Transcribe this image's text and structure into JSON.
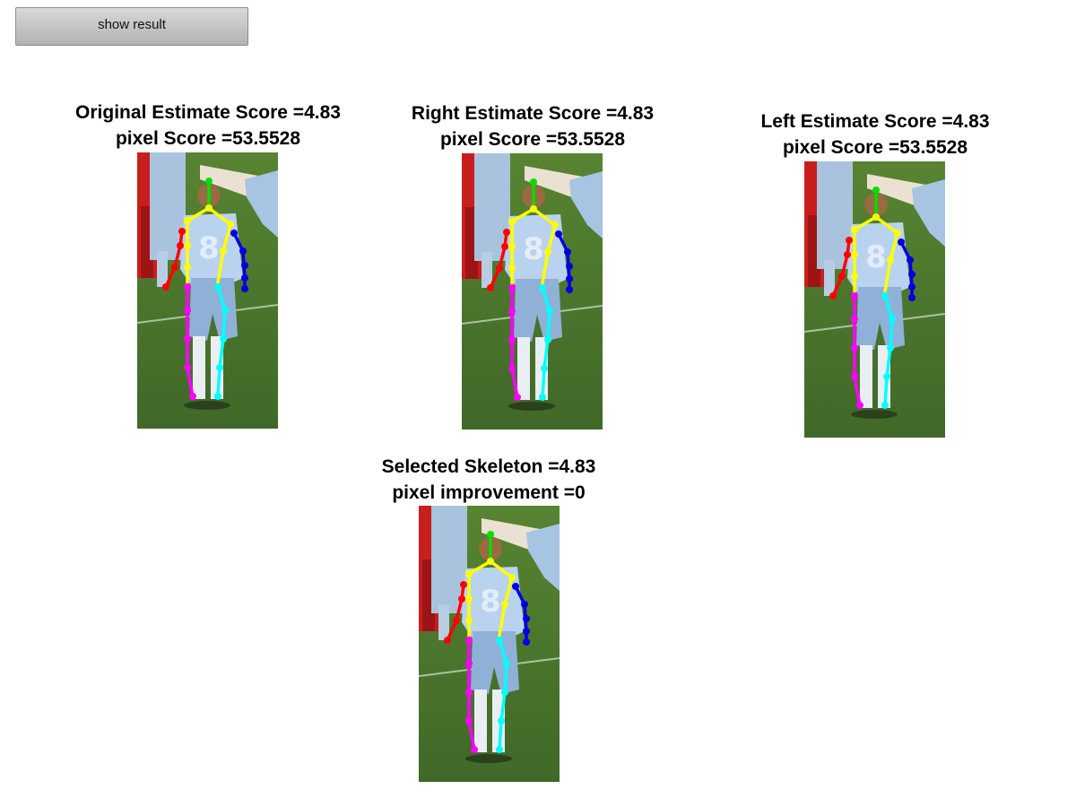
{
  "button": {
    "label": "show result"
  },
  "panels": [
    {
      "id": "original",
      "line1": "Original Estimate Score =4.83",
      "line2": "pixel Score =53.5528",
      "image": "skeleton-overlay-photo"
    },
    {
      "id": "right",
      "line1": "Right Estimate Score =4.83",
      "line2": "pixel Score =53.5528",
      "image": "skeleton-overlay-photo"
    },
    {
      "id": "left",
      "line1": "Left Estimate Score =4.83",
      "line2": "pixel Score =53.5528",
      "image": "skeleton-overlay-photo"
    },
    {
      "id": "selected",
      "line1": "Selected Skeleton =4.83",
      "line2": "pixel improvement =0",
      "image": "skeleton-overlay-photo"
    }
  ],
  "colors": {
    "head": "#00e000",
    "torso": "#ffff00",
    "right_arm": "#ff0000",
    "left_arm": "#0000e0",
    "right_leg": "#ff00ff",
    "left_leg": "#00ffff",
    "grass": "#4f7a2a",
    "shirt": "#aac8e6"
  }
}
